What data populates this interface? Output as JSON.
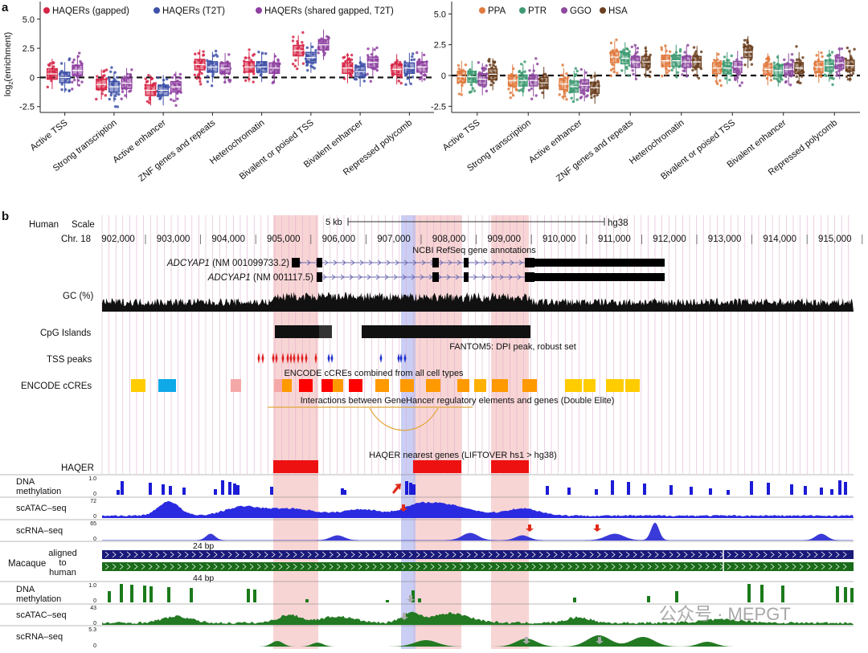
{
  "panel_a": {
    "letter": "a",
    "ylabel": "log2(enrichment)",
    "ylabel_main": "log",
    "ylabel_sub": "2",
    "ylabel_rest": "(enrichment)",
    "left_legend": [
      "HAQERs (gapped)",
      "HAQERs (T2T)",
      "HAQERs (shared gapped, T2T)"
    ],
    "left_colors": [
      "#d62546",
      "#3f51a8",
      "#8e3fa0"
    ],
    "right_legend": [
      "PPA",
      "PTR",
      "GGO",
      "HSA"
    ],
    "right_colors": [
      "#e07a3f",
      "#3f9a72",
      "#8e4aa0",
      "#6b3f1f"
    ]
  },
  "chart_data": [
    {
      "type": "box",
      "title": "",
      "xlabel": "",
      "ylabel": "log2(enrichment)",
      "ylim": [
        -3.0,
        6.5
      ],
      "yticks": [
        -2.5,
        0,
        2.5,
        5.0
      ],
      "ytick_labels": [
        "-2.5",
        "0",
        "2.5",
        "5.0"
      ],
      "categories": [
        "Active TSS",
        "Strong transcription",
        "Active enhancer",
        "ZNF genes and repeats",
        "Heterochromatin",
        "Bivalent or poised TSS",
        "Bivalent enhancer",
        "Repressed polycomb"
      ],
      "series": [
        {
          "name": "HAQERs (gapped)",
          "medians": [
            0.3,
            -0.6,
            -1.1,
            1.1,
            0.9,
            2.3,
            0.8,
            0.7
          ]
        },
        {
          "name": "HAQERs (T2T)",
          "medians": [
            0.0,
            -0.8,
            -1.1,
            0.9,
            0.9,
            1.7,
            0.5,
            0.8
          ]
        },
        {
          "name": "HAQERs (shared gapped, T2T)",
          "medians": [
            0.6,
            -0.5,
            -0.8,
            0.8,
            0.8,
            2.8,
            1.3,
            0.9
          ]
        }
      ]
    },
    {
      "type": "box",
      "title": "",
      "xlabel": "",
      "ylabel": "",
      "ylim": [
        -3.0,
        6.0
      ],
      "yticks": [
        -2.5,
        0,
        2.5,
        5.0
      ],
      "ytick_labels": [
        "-2.5",
        "0",
        "2.5",
        "5.0"
      ],
      "categories": [
        "Active TSS",
        "Strong transcription",
        "Active enhancer",
        "ZNF genes and repeats",
        "Heterochromatin",
        "Bivalent or poised TSS",
        "Bivalent enhancer",
        "Repressed polycomb"
      ],
      "series": [
        {
          "name": "PPA",
          "medians": [
            -0.1,
            -0.4,
            -0.7,
            1.5,
            1.2,
            0.6,
            0.5,
            0.7
          ]
        },
        {
          "name": "PTR",
          "medians": [
            -0.1,
            -0.4,
            -0.9,
            1.4,
            1.2,
            0.6,
            0.4,
            0.8
          ]
        },
        {
          "name": "GGO",
          "medians": [
            -0.3,
            -0.4,
            -0.8,
            1.1,
            1.1,
            0.7,
            0.5,
            1.0
          ]
        },
        {
          "name": "HSA",
          "medians": [
            0.1,
            -0.6,
            -1.0,
            1.1,
            1.1,
            1.9,
            0.6,
            0.8
          ]
        }
      ]
    }
  ],
  "panel_b": {
    "letter": "b",
    "species_human": "Human",
    "scale_label": "Scale",
    "scale_value": "5 kb",
    "assembly": "hg38",
    "chrom_label": "Chr. 18",
    "coords": [
      "902,000",
      "903,000",
      "904,000",
      "905,000",
      "906,000",
      "907,000",
      "908,000",
      "909,000",
      "910,000",
      "911,000",
      "912,000",
      "913,000",
      "914,000",
      "915,000"
    ],
    "refseq_title": "NCBI RefSeq gene annotations",
    "gene1_name": "ADCYAP1",
    "gene1_acc": " (NM 001099733.2)",
    "gene2_name": "ADCYAP1",
    "gene2_acc": " (NM 001117.5)",
    "gc_label": "GC (%)",
    "cpg_label": "CpG Islands",
    "tss_label": "TSS peaks",
    "tss_title": "FANTOM5: DPI peak, robust set",
    "cre_title": "ENCODE cCREs combined from all cell types",
    "cre_label": "ENCODE cCREs",
    "genehancer_title": "Interactions between GeneHancer regulatory elements and genes (Double Elite)",
    "haqer_title": "HAQER nearest genes (LIFTOVER hs1 > hg38)",
    "haqer_label": "HAQER",
    "human_tracks": [
      {
        "label1": "DNA",
        "label2": "methylation",
        "max": "1.0",
        "min": "0"
      },
      {
        "label1": "scATAC–seq",
        "label2": "",
        "max": "72",
        "min": "0"
      },
      {
        "label1": "scRNA–seq",
        "label2": "",
        "max": "65",
        "min": "0"
      }
    ],
    "macaque_label": "Macaque",
    "aligned1": "aligned",
    "aligned2": "to",
    "aligned3": "human",
    "gap1": "24 bp",
    "gap2": "44 bp",
    "macaque_tracks": [
      {
        "label1": "DNA",
        "label2": "methylation",
        "max": "1.0",
        "min": "0"
      },
      {
        "label1": "scATAC–seq",
        "label2": "",
        "max": "43",
        "min": "0"
      },
      {
        "label1": "scRNA–seq",
        "label2": "",
        "max": "5.3",
        "min": "0"
      }
    ],
    "watermark": "公众号 · MEPGT"
  }
}
